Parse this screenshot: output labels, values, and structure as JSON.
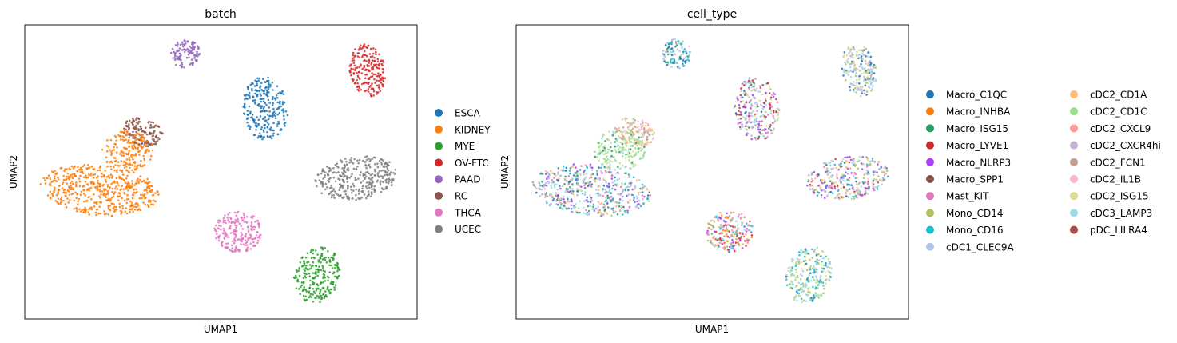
{
  "chart_data": [
    {
      "type": "scatter",
      "title": "batch",
      "xlabel": "UMAP1",
      "ylabel": "UMAP2",
      "grid": false,
      "legend_placement": "right",
      "legend": [
        {
          "label": "ESCA",
          "color": "#1f77b4"
        },
        {
          "label": "KIDNEY",
          "color": "#ff7f0e"
        },
        {
          "label": "MYE",
          "color": "#2ca02c"
        },
        {
          "label": "OV-FTC",
          "color": "#d62728"
        },
        {
          "label": "PAAD",
          "color": "#9467bd"
        },
        {
          "label": "RC",
          "color": "#8c564b"
        },
        {
          "label": "THCA",
          "color": "#e377c2"
        },
        {
          "label": "UCEC",
          "color": "#7f7f7f"
        }
      ]
    },
    {
      "type": "scatter",
      "title": "cell_type",
      "xlabel": "UMAP1",
      "ylabel": "UMAP2",
      "grid": false,
      "legend_placement": "right",
      "legend": [
        {
          "label": "Macro_C1QC",
          "color": "#1f77b4"
        },
        {
          "label": "Macro_INHBA",
          "color": "#ff7f0e"
        },
        {
          "label": "Macro_ISG15",
          "color": "#279e68"
        },
        {
          "label": "Macro_LYVE1",
          "color": "#d62728"
        },
        {
          "label": "Macro_NLRP3",
          "color": "#aa40fc"
        },
        {
          "label": "Macro_SPP1",
          "color": "#8c564b"
        },
        {
          "label": "Mast_KIT",
          "color": "#e377c2"
        },
        {
          "label": "Mono_CD14",
          "color": "#b5bd61"
        },
        {
          "label": "Mono_CD16",
          "color": "#17becf"
        },
        {
          "label": "cDC1_CLEC9A",
          "color": "#aec7e8"
        },
        {
          "label": "cDC2_CD1A",
          "color": "#ffbb78"
        },
        {
          "label": "cDC2_CD1C",
          "color": "#98df8a"
        },
        {
          "label": "cDC2_CXCL9",
          "color": "#ff9896"
        },
        {
          "label": "cDC2_CXCR4hi",
          "color": "#c5b0d5"
        },
        {
          "label": "cDC2_FCN1",
          "color": "#c49c94"
        },
        {
          "label": "cDC2_IL1B",
          "color": "#f7b6d2"
        },
        {
          "label": "cDC2_ISG15",
          "color": "#dbdb8d"
        },
        {
          "label": "cDC3_LAMP3",
          "color": "#9edae5"
        },
        {
          "label": "pDC_LILRA4",
          "color": "#ad494a"
        }
      ]
    }
  ]
}
